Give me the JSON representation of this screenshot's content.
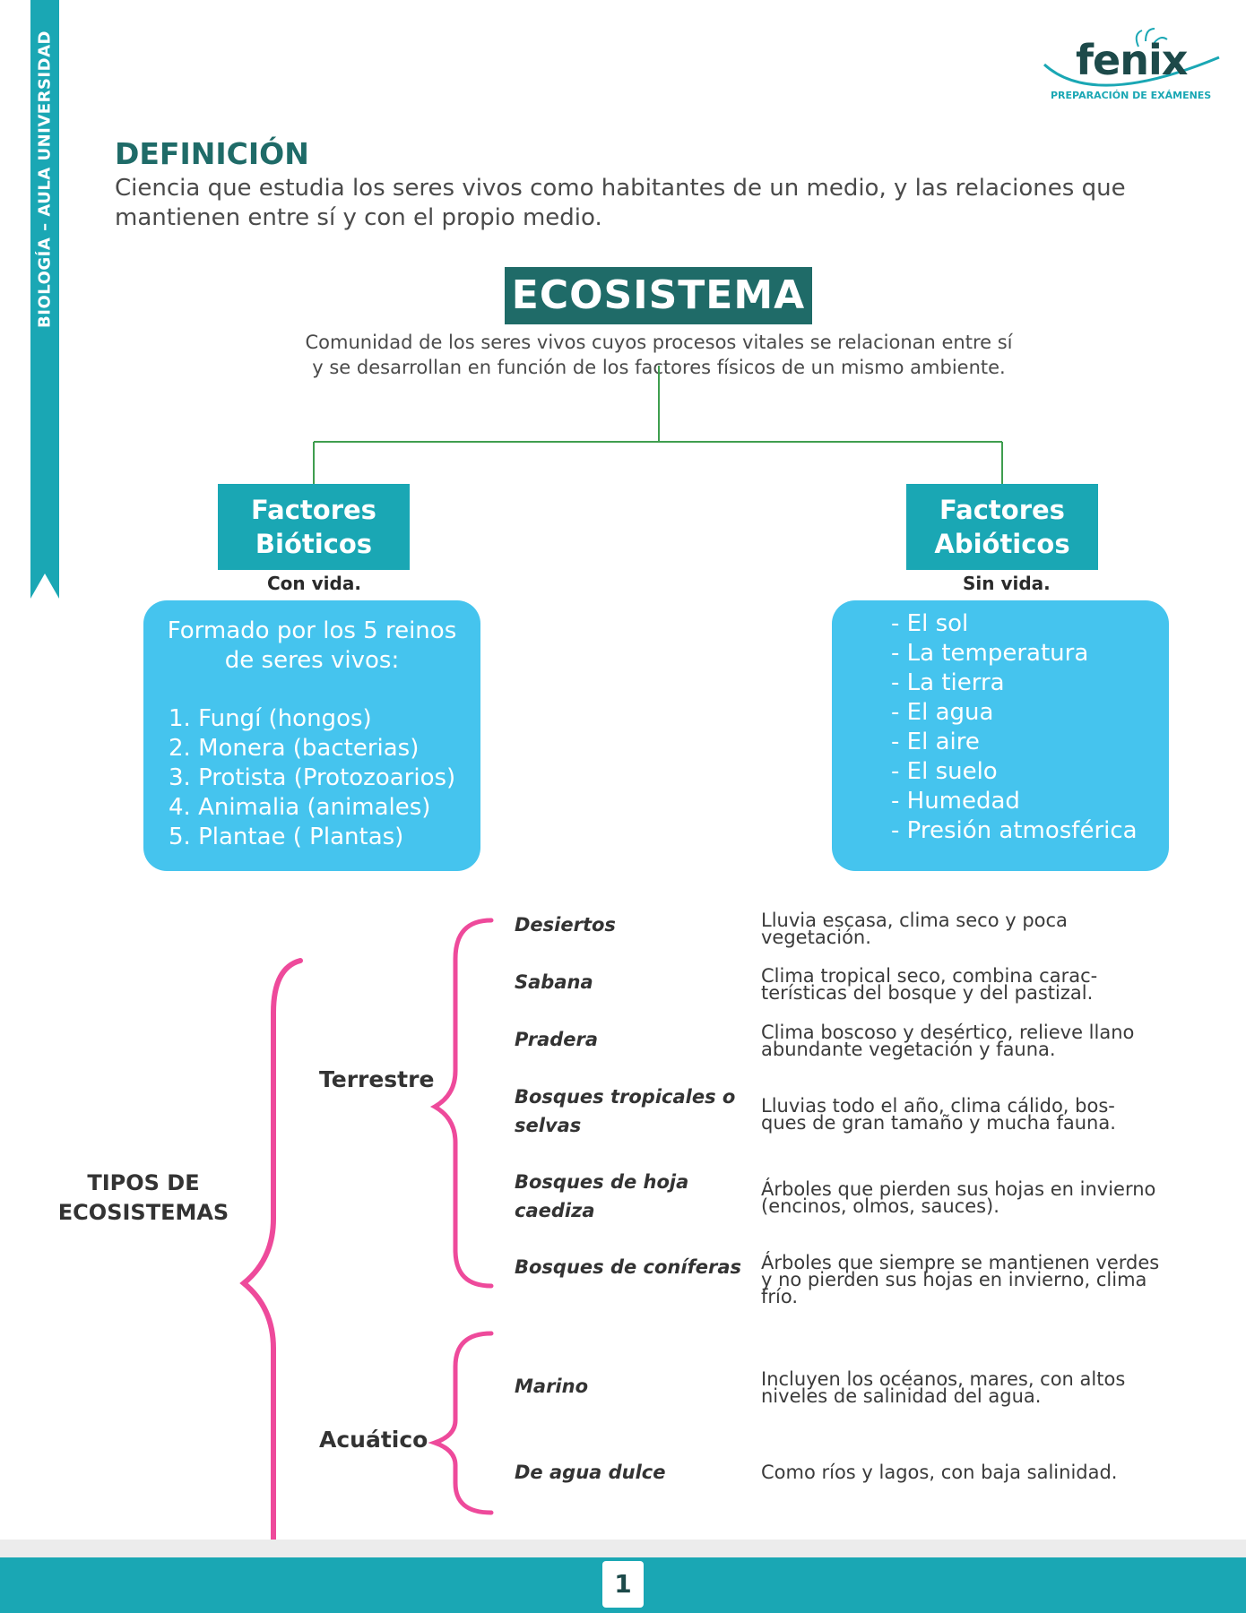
{
  "side_band": {
    "text": "BIOLOGÍA – AULA UNIVERSIDAD"
  },
  "logo": {
    "word": "fenix",
    "subtitle": "PREPARACIÓN DE EXÁMENES"
  },
  "definition": {
    "title": "DEFINICIÓN",
    "lines": [
      "Ciencia que estudia los seres vivos como habitantes de un medio, y las relaciones que",
      "mantienen entre sí y con el propio medio."
    ]
  },
  "ecosistema": {
    "title": "ECOSISTEMA",
    "lines": [
      "Comunidad de los seres vivos cuyos procesos vitales se relacionan entre sí",
      "y se desarrollan en función de los factores físicos de un mismo ambiente."
    ]
  },
  "bioticos": {
    "title_lines": [
      "Factores",
      "Bióticos"
    ],
    "subtitle": "Con vida.",
    "intro_lines": [
      "Formado por los 5 reinos",
      "de seres vivos:"
    ],
    "items": [
      "1. Fungí (hongos)",
      "2. Monera (bacterias)",
      "3. Protista (Protozoarios)",
      "4. Animalia (animales)",
      "5. Plantae ( Plantas)"
    ]
  },
  "abioticos": {
    "title_lines": [
      "Factores",
      "Abióticos"
    ],
    "subtitle": "Sin vida.",
    "items": [
      "- El sol",
      "- La temperatura",
      "- La tierra",
      "- El agua",
      "- El aire",
      "- El suelo",
      "- Humedad",
      "- Presión atmosférica"
    ]
  },
  "tipos": {
    "label_lines": [
      "TIPOS DE",
      "ECOSISTEMAS"
    ],
    "terrestre": {
      "label": "Terrestre",
      "items": [
        {
          "name_lines": [
            "Desiertos"
          ],
          "desc_lines": [
            "Lluvia escasa, clima seco y poca",
            "vegetación."
          ]
        },
        {
          "name_lines": [
            "Sabana"
          ],
          "desc_lines": [
            "Clima tropical seco, combina carac-",
            "terísticas del bosque y del pastizal."
          ]
        },
        {
          "name_lines": [
            "Pradera"
          ],
          "desc_lines": [
            "Clima boscoso y desértico, relieve llano",
            "abundante vegetación y fauna."
          ]
        },
        {
          "name_lines": [
            "Bosques tropicales o",
            "selvas"
          ],
          "desc_lines": [
            "Lluvias todo el año, clima cálido, bos-",
            "ques de gran tamaño y mucha fauna."
          ]
        },
        {
          "name_lines": [
            "Bosques de hoja",
            "caediza"
          ],
          "desc_lines": [
            "Árboles que pierden sus hojas en invierno",
            "(encinos, olmos, sauces)."
          ]
        },
        {
          "name_lines": [
            "Bosques de coníferas"
          ],
          "desc_lines": [
            "Árboles que siempre se mantienen verdes",
            "y no pierden sus hojas en invierno, clima",
            "frío."
          ]
        }
      ]
    },
    "acuatico": {
      "label": "Acuático",
      "items": [
        {
          "name_lines": [
            "Marino"
          ],
          "desc_lines": [
            "Incluyen los océanos, mares, con altos",
            "niveles de salinidad del agua."
          ]
        },
        {
          "name_lines": [
            "De agua dulce"
          ],
          "desc_lines": [
            "Como ríos y lagos, con baja salinidad."
          ]
        }
      ]
    }
  },
  "footer": {
    "page_number": "1"
  },
  "colors": {
    "teal": "#1aa7b4",
    "dark_teal": "#1f6b68",
    "sky": "#45c4ee",
    "pink": "#ee4a9b",
    "green_line": "#3f9e4f"
  }
}
